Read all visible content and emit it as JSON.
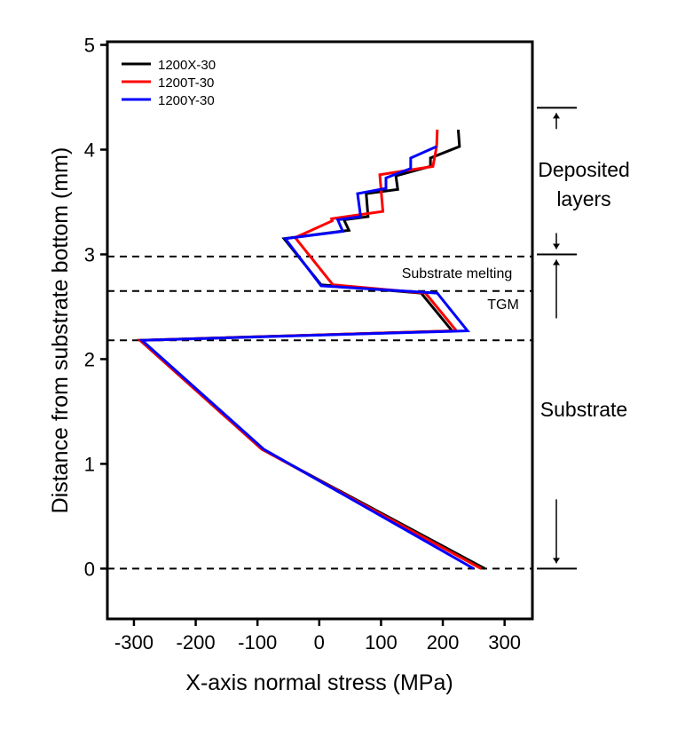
{
  "chart_data": {
    "type": "line",
    "title": "",
    "xlabel": "X-axis normal stress (MPa)",
    "ylabel": "Distance from substrate bottom (mm)",
    "xlim": [
      -343,
      345
    ],
    "ylim": [
      -0.48,
      5.03
    ],
    "xticks": [
      -300,
      -200,
      -100,
      0,
      100,
      200,
      300
    ],
    "yticks": [
      0,
      1,
      2,
      3,
      4,
      5
    ],
    "grid": false,
    "legend_placement": "top-left",
    "series": [
      {
        "name": "1200X-30",
        "color": "#000000",
        "points": [
          [
            268,
            0
          ],
          [
            -93,
            1.14
          ],
          [
            -290,
            2.18
          ],
          [
            215,
            2.27
          ],
          [
            165,
            2.63
          ],
          [
            3,
            2.71
          ],
          [
            -57,
            3.15
          ],
          [
            48,
            3.23
          ],
          [
            40,
            3.33
          ],
          [
            79,
            3.36
          ],
          [
            76,
            3.58
          ],
          [
            127,
            3.62
          ],
          [
            124,
            3.75
          ],
          [
            180,
            3.84
          ],
          [
            180,
            3.92
          ],
          [
            227,
            4.03
          ],
          [
            225,
            4.19
          ]
        ]
      },
      {
        "name": "1200T-30",
        "color": "#ff0000",
        "points": [
          [
            262,
            0
          ],
          [
            -93,
            1.14
          ],
          [
            -290,
            2.18
          ],
          [
            222,
            2.27
          ],
          [
            172,
            2.63
          ],
          [
            22,
            2.71
          ],
          [
            -39,
            3.16
          ],
          [
            21,
            3.32
          ],
          [
            20,
            3.34
          ],
          [
            103,
            3.41
          ],
          [
            98,
            3.76
          ],
          [
            184,
            3.84
          ],
          [
            190,
            4.03
          ],
          [
            191,
            4.19
          ]
        ]
      },
      {
        "name": "1200Y-30",
        "color": "#0000ff",
        "points": [
          [
            250,
            0
          ],
          [
            -90,
            1.14
          ],
          [
            -287,
            2.18
          ],
          [
            240,
            2.27
          ],
          [
            191,
            2.63
          ],
          [
            3,
            2.7
          ],
          [
            -55,
            3.15
          ],
          [
            38,
            3.22
          ],
          [
            30,
            3.33
          ],
          [
            67,
            3.36
          ],
          [
            62,
            3.58
          ],
          [
            108,
            3.63
          ],
          [
            108,
            3.73
          ],
          [
            148,
            3.82
          ],
          [
            148,
            3.92
          ],
          [
            190,
            4.03
          ]
        ]
      }
    ],
    "dashed_levels": [
      0,
      2.18,
      2.65,
      2.98
    ],
    "annotations": {
      "substrate_melting": "Substrate melting",
      "tgm": "TGM",
      "deposited_line1": "Deposited",
      "deposited_line2": "layers",
      "substrate": "Substrate"
    },
    "region_bounds": [
      4.4,
      3.0,
      0
    ]
  }
}
